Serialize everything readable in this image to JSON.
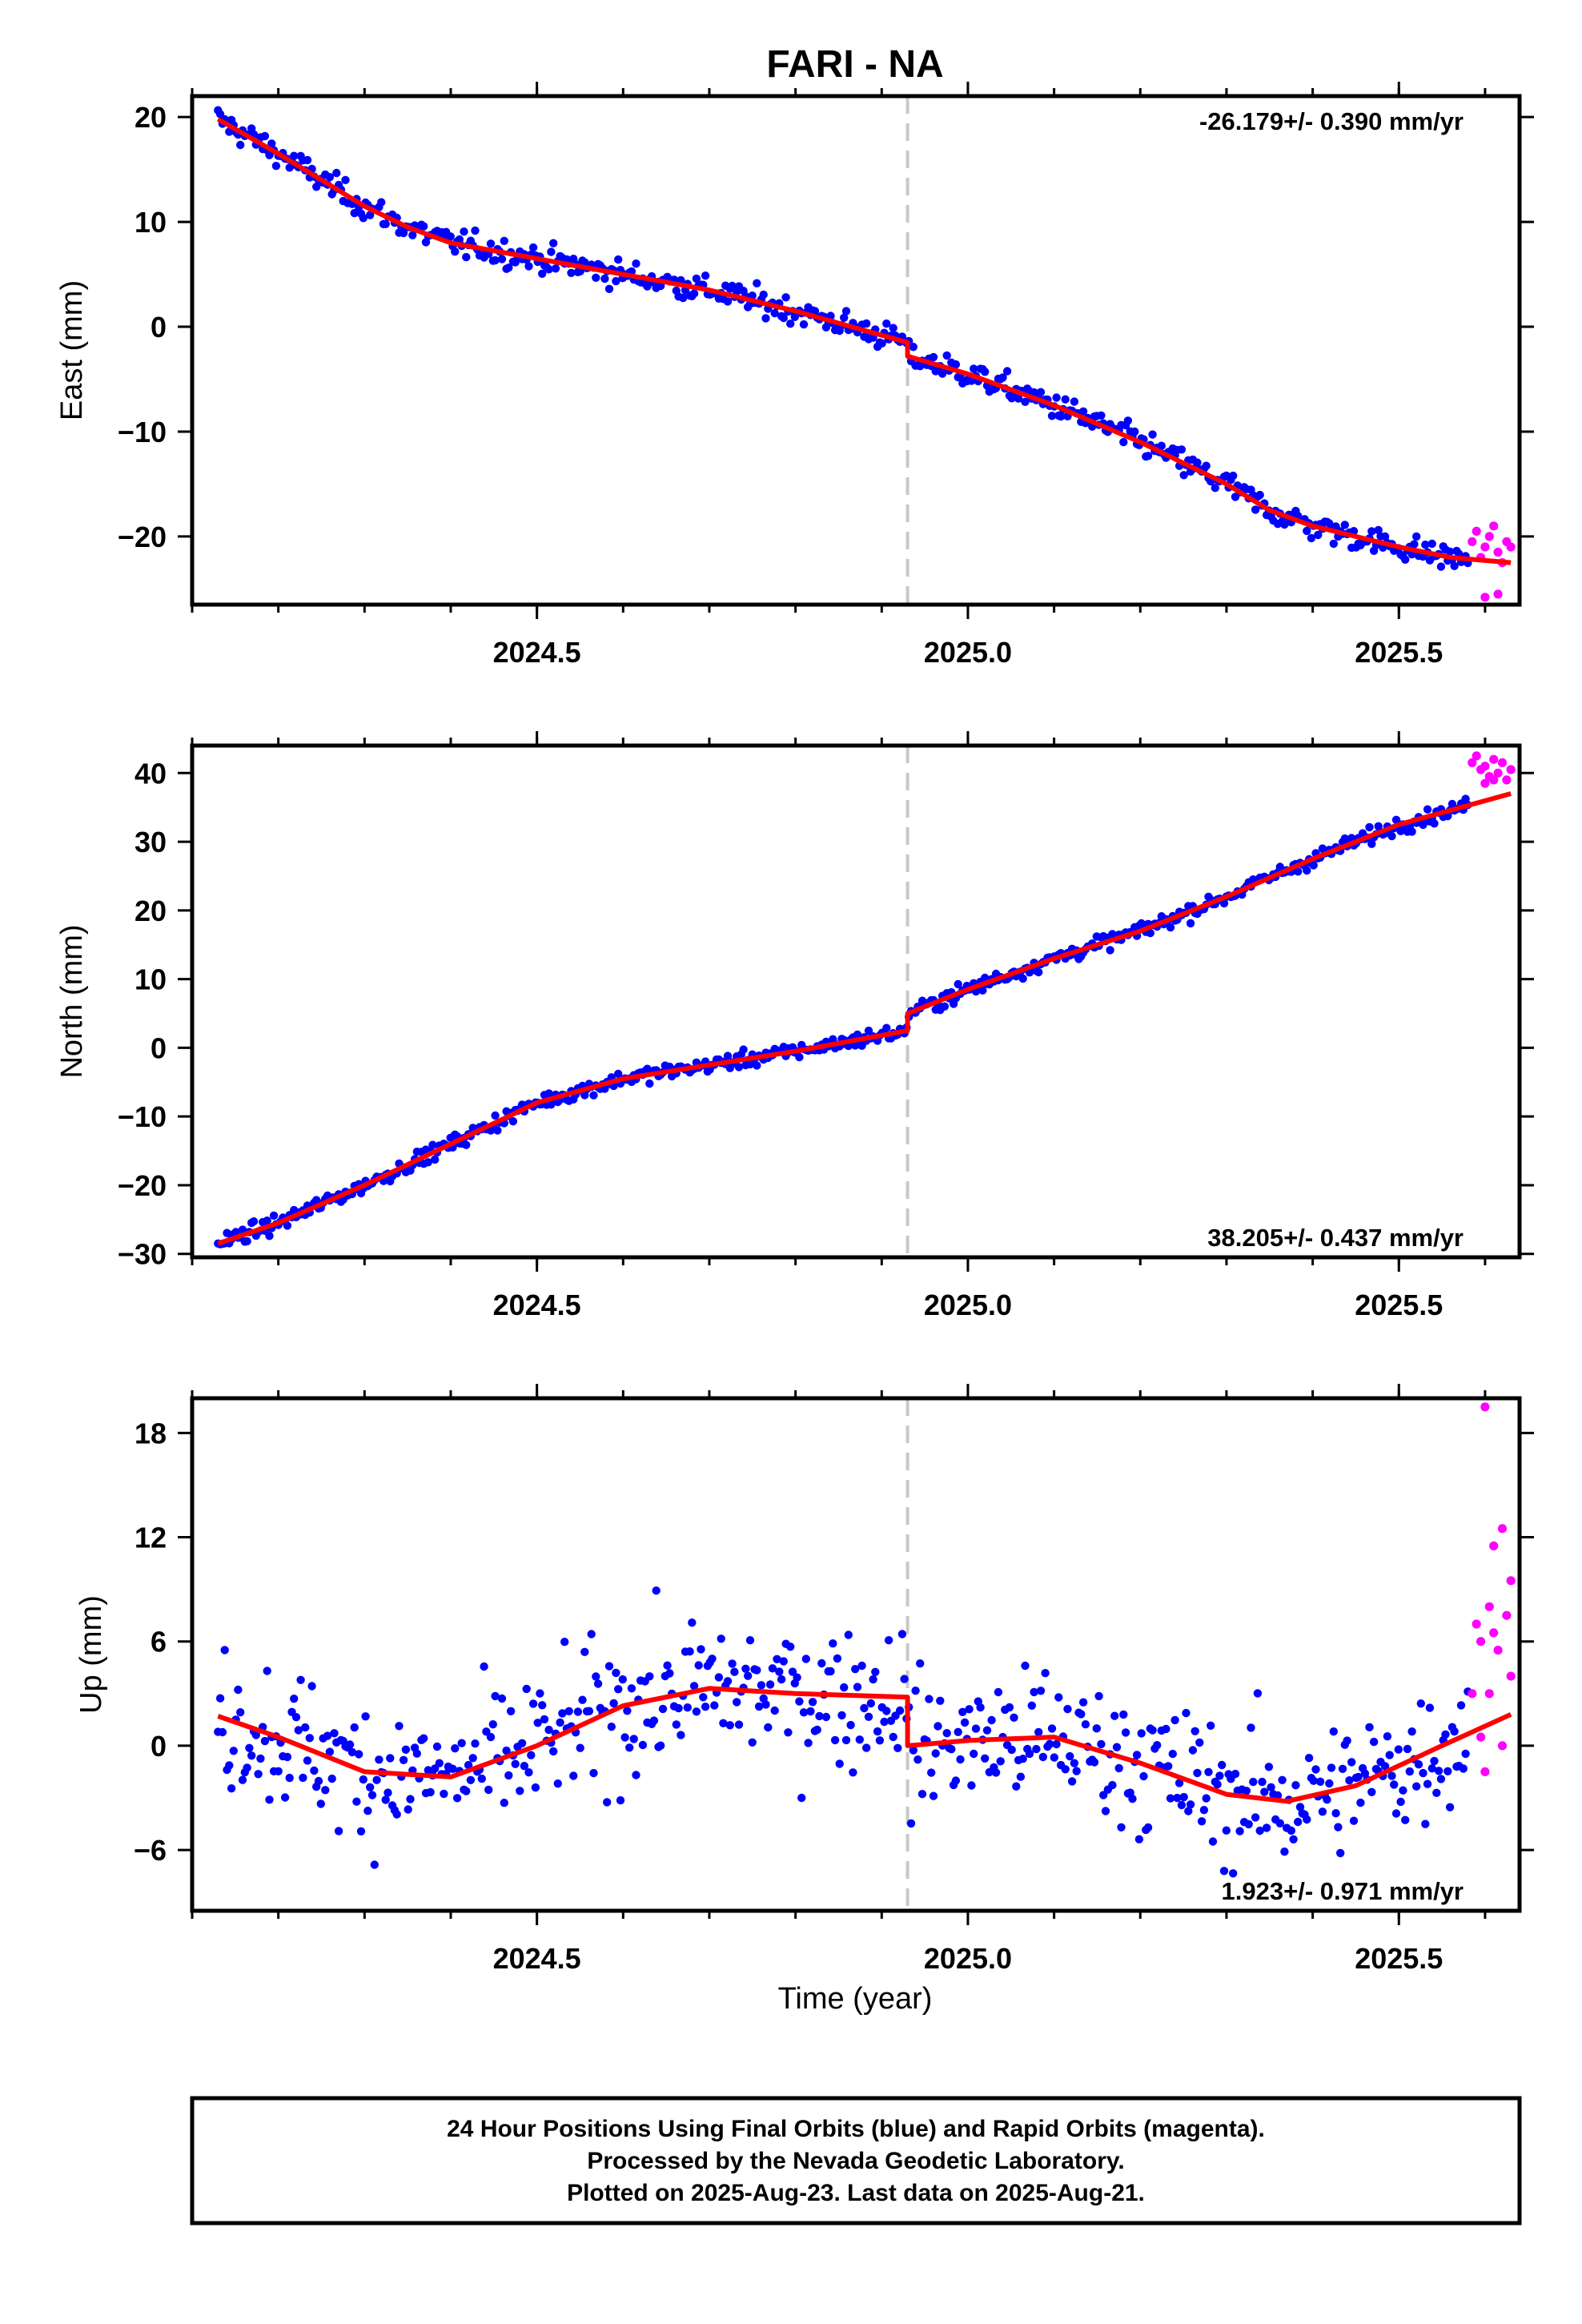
{
  "title": "FARI - NA",
  "xlabel": "Time (year)",
  "footer": {
    "line1": "24 Hour Positions Using Final Orbits (blue) and Rapid Orbits (magenta).",
    "line2": "Processed by the Nevada Geodetic Laboratory.",
    "line3": "Plotted on 2025-Aug-23. Last data on 2025-Aug-21."
  },
  "colors": {
    "final": "#0000ff",
    "rapid": "#ff00ff",
    "model": "#ff0000",
    "event": "#c8c8c8"
  },
  "chart_data": [
    {
      "type": "scatter",
      "component": "east",
      "ylabel": "East (mm)",
      "rate_text": "-26.179+/- 0.390 mm/yr",
      "rate_position": "top-right",
      "xlim": [
        2024.1,
        2025.64
      ],
      "ylim": [
        -26.5,
        22
      ],
      "xticks": [
        2024.5,
        2025.0,
        2025.5
      ],
      "xtick_labels": [
        "2024.5",
        "2025.0",
        "2025.5"
      ],
      "yticks": [
        20,
        10,
        0,
        -10,
        -20
      ],
      "ytick_labels": [
        "20",
        "10",
        "0",
        "−10",
        "−20"
      ],
      "grid": false,
      "event_line_x": 2024.93,
      "model_x": [
        2024.13,
        2024.2,
        2024.25,
        2024.3,
        2024.35,
        2024.4,
        2024.5,
        2024.6,
        2024.7,
        2024.8,
        2024.93,
        2024.93,
        2025.0,
        2025.1,
        2025.2,
        2025.3,
        2025.35,
        2025.4,
        2025.5,
        2025.56,
        2025.63
      ],
      "model_y": [
        19.8,
        16.5,
        14.0,
        11.5,
        9.5,
        8.0,
        6.5,
        5.0,
        3.5,
        1.5,
        -1.5,
        -2.8,
        -4.5,
        -7.5,
        -11.0,
        -15.0,
        -17.5,
        -19.0,
        -21.0,
        -22.0,
        -22.5
      ],
      "final_x_range": [
        2024.13,
        2025.58
      ],
      "final_scatter_mm": 0.9,
      "rapid_x": [
        2025.585,
        2025.59,
        2025.595,
        2025.6,
        2025.605,
        2025.61,
        2025.615,
        2025.62,
        2025.625,
        2025.63,
        2025.6,
        2025.615
      ],
      "rapid_y": [
        -20.5,
        -19.5,
        -22.0,
        -21.0,
        -20.0,
        -19.0,
        -21.5,
        -22.5,
        -20.5,
        -21.0,
        -25.8,
        -25.5
      ]
    },
    {
      "type": "scatter",
      "component": "north",
      "ylabel": "North (mm)",
      "rate_text": "38.205+/- 0.437 mm/yr",
      "rate_position": "bottom-right",
      "xlim": [
        2024.1,
        2025.64
      ],
      "ylim": [
        -30.5,
        44
      ],
      "xticks": [
        2024.5,
        2025.0,
        2025.5
      ],
      "xtick_labels": [
        "2024.5",
        "2025.0",
        "2025.5"
      ],
      "yticks": [
        40,
        30,
        20,
        10,
        0,
        -10,
        -20,
        -30
      ],
      "ytick_labels": [
        "40",
        "30",
        "20",
        "10",
        "0",
        "−10",
        "−20",
        "−30"
      ],
      "grid": false,
      "event_line_x": 2024.93,
      "model_x": [
        2024.13,
        2024.2,
        2024.3,
        2024.4,
        2024.5,
        2024.6,
        2024.7,
        2024.8,
        2024.93,
        2024.93,
        2025.0,
        2025.1,
        2025.2,
        2025.3,
        2025.4,
        2025.5,
        2025.63
      ],
      "model_y": [
        -28.5,
        -25.5,
        -20.0,
        -14.0,
        -8.0,
        -4.5,
        -2.5,
        -0.5,
        2.5,
        5.0,
        8.5,
        13.0,
        17.0,
        22.0,
        27.5,
        32.5,
        37.0
      ],
      "final_x_range": [
        2024.13,
        2025.58
      ],
      "final_scatter_mm": 0.8,
      "rapid_x": [
        2025.585,
        2025.59,
        2025.595,
        2025.6,
        2025.605,
        2025.61,
        2025.615,
        2025.62,
        2025.625,
        2025.63,
        2025.6,
        2025.61
      ],
      "rapid_y": [
        41.5,
        42.5,
        40.5,
        41.0,
        39.5,
        42.0,
        40.0,
        41.5,
        39.0,
        40.5,
        38.5,
        39.0
      ]
    },
    {
      "type": "scatter",
      "component": "up",
      "ylabel": "Up (mm)",
      "rate_text": "1.923+/- 0.971 mm/yr",
      "rate_position": "bottom-right",
      "xlim": [
        2024.1,
        2025.64
      ],
      "ylim": [
        -9.5,
        20
      ],
      "xticks": [
        2024.5,
        2025.0,
        2025.5
      ],
      "xtick_labels": [
        "2024.5",
        "2025.0",
        "2025.5"
      ],
      "yticks": [
        18,
        12,
        6,
        0,
        -6
      ],
      "ytick_labels": [
        "18",
        "12",
        "6",
        "0",
        "−6"
      ],
      "grid": false,
      "event_line_x": 2024.93,
      "model_x": [
        2024.13,
        2024.2,
        2024.3,
        2024.4,
        2024.5,
        2024.6,
        2024.7,
        2024.8,
        2024.93,
        2024.93,
        2025.0,
        2025.1,
        2025.2,
        2025.3,
        2025.37,
        2025.45,
        2025.55,
        2025.63
      ],
      "model_y": [
        1.7,
        0.5,
        -1.5,
        -1.8,
        0.0,
        2.3,
        3.3,
        3.0,
        2.8,
        0.0,
        0.3,
        0.5,
        -1.0,
        -2.8,
        -3.2,
        -2.3,
        0.0,
        1.8
      ],
      "final_x_range": [
        2024.13,
        2025.58
      ],
      "final_scatter_mm": 2.8,
      "rapid_x": [
        2025.585,
        2025.59,
        2025.595,
        2025.6,
        2025.605,
        2025.61,
        2025.615,
        2025.62,
        2025.625,
        2025.63,
        2025.595,
        2025.61,
        2025.62,
        2025.63,
        2025.605,
        2025.6
      ],
      "rapid_y": [
        3.0,
        7.0,
        6.0,
        19.5,
        8.0,
        11.5,
        5.5,
        12.5,
        7.5,
        9.5,
        0.5,
        6.5,
        0.0,
        4.0,
        3.0,
        -1.5
      ]
    }
  ]
}
